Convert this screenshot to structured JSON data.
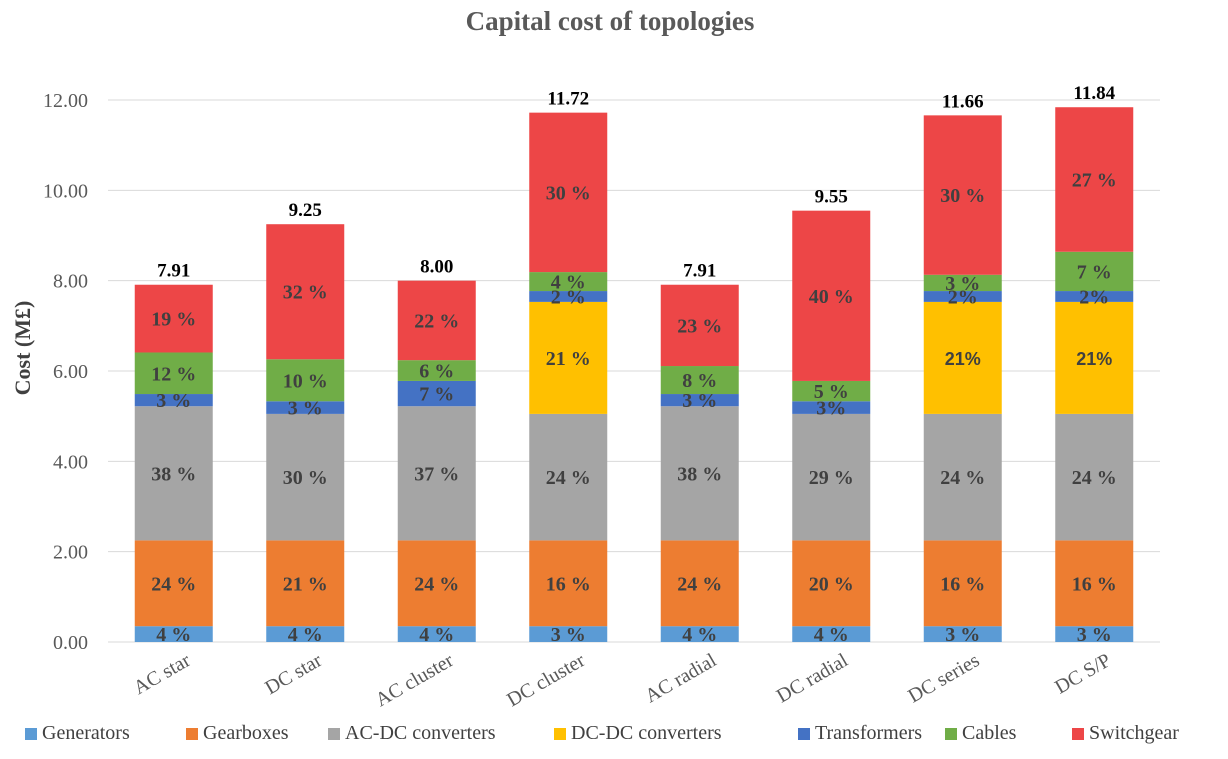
{
  "chart_data": {
    "type": "bar",
    "stacked": true,
    "title": "Capital cost of topologies",
    "xlabel": "",
    "ylabel": "Cost (M£)",
    "ylim": [
      0,
      12
    ],
    "yticks": [
      "0.00",
      "2.00",
      "4.00",
      "6.00",
      "8.00",
      "10.00",
      "12.00"
    ],
    "grid": true,
    "legend_position": "bottom",
    "categories": [
      "AC star",
      "DC star",
      "AC cluster",
      "DC cluster",
      "AC radial",
      "DC radial",
      "DC series",
      "DC S/P"
    ],
    "totals": [
      "7.91",
      "9.25",
      "8.00",
      "11.72",
      "7.91",
      "9.55",
      "11.66",
      "11.84"
    ],
    "total_values": [
      7.91,
      9.25,
      8.0,
      11.72,
      7.91,
      9.55,
      11.66,
      11.84
    ],
    "series": [
      {
        "name": "Generators",
        "color": "#5b9bd5",
        "values": [
          0.35,
          0.35,
          0.35,
          0.35,
          0.35,
          0.35,
          0.35,
          0.35
        ],
        "labels": [
          "4 %",
          "4 %",
          "4 %",
          "3 %",
          "4 %",
          "4 %",
          "3 %",
          "3 %"
        ]
      },
      {
        "name": "Gearboxes",
        "color": "#ed7d31",
        "values": [
          1.9,
          1.9,
          1.9,
          1.9,
          1.9,
          1.9,
          1.9,
          1.9
        ],
        "labels": [
          "24 %",
          "21 %",
          "24 %",
          "16 %",
          "24 %",
          "20 %",
          "16 %",
          "16 %"
        ]
      },
      {
        "name": "AC-DC converters",
        "color": "#a5a5a5",
        "values": [
          2.97,
          2.8,
          2.97,
          2.8,
          2.97,
          2.8,
          2.8,
          2.8
        ],
        "labels": [
          "38 %",
          "30 %",
          "37 %",
          "24 %",
          "38 %",
          "29 %",
          "24 %",
          "24 %"
        ]
      },
      {
        "name": "DC-DC  converters",
        "color": "#ffc000",
        "values": [
          0,
          0,
          0,
          2.48,
          0,
          0,
          2.48,
          2.48
        ],
        "labels": [
          "",
          "",
          "",
          "21 %",
          "",
          "",
          "21%",
          "21%"
        ]
      },
      {
        "name": "Transformers",
        "color": "#4472c4",
        "values": [
          0.27,
          0.28,
          0.56,
          0.24,
          0.27,
          0.28,
          0.24,
          0.24
        ],
        "labels": [
          "3 %",
          "3 %",
          "7 %",
          "2 %",
          "3 %",
          "3%",
          "2%",
          "2%"
        ]
      },
      {
        "name": "Cables",
        "color": "#70ad47",
        "values": [
          0.92,
          0.93,
          0.46,
          0.42,
          0.62,
          0.45,
          0.36,
          0.87
        ],
        "labels": [
          "12 %",
          "10 %",
          "6 %",
          "4 %",
          "8 %",
          "5 %",
          "3 %",
          "7 %"
        ]
      },
      {
        "name": "Switchgear",
        "color": "#ed4647",
        "values": [
          1.5,
          2.99,
          1.76,
          3.53,
          1.8,
          3.77,
          3.53,
          3.2
        ],
        "labels": [
          "19 %",
          "32 %",
          "22 %",
          "30 %",
          "23 %",
          "40 %",
          "30 %",
          "27 %"
        ]
      }
    ]
  }
}
